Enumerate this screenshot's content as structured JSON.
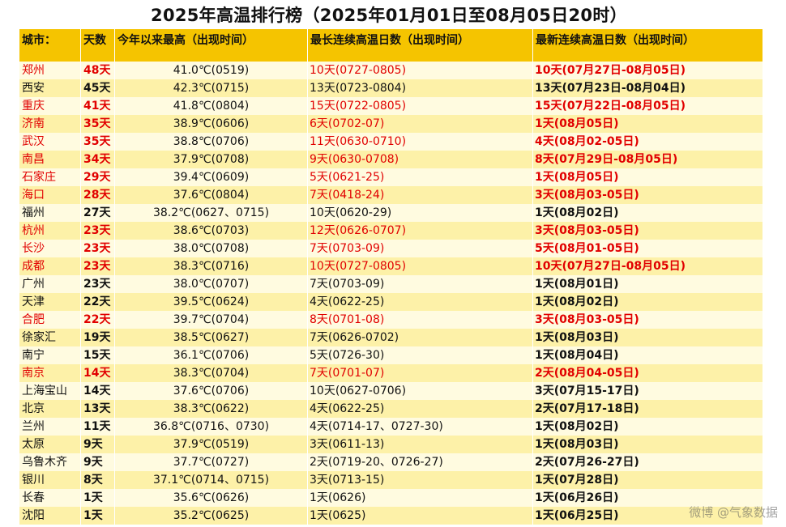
{
  "title": "2025年高温排行榜（2025年01月01日至08月05日20时）",
  "colors": {
    "header_bg": "#f5c400",
    "row_light": "#fffbe0",
    "row_dark": "#fdf1a8",
    "highlight": "#e10000"
  },
  "headers": [
    "城市：",
    "天数",
    "今年以来最高（出现时间）",
    "最长连续高温日数（出现时间）",
    "最新连续高温日数（出现时间）"
  ],
  "rows": [
    {
      "city": "郑州",
      "days": "48天",
      "max": "41.0℃(0519)",
      "longest": "10天(0727-0805)",
      "latest": "10天(07月27日-08月05日)",
      "red": true
    },
    {
      "city": "西安",
      "days": "45天",
      "max": "42.3℃(0715)",
      "longest": "13天(0723-0804)",
      "latest": "13天(07月23日-08月04日)",
      "red": false
    },
    {
      "city": "重庆",
      "days": "41天",
      "max": "41.8℃(0804)",
      "longest": "15天(0722-0805)",
      "latest": "15天(07月22日-08月05日)",
      "red": true
    },
    {
      "city": "济南",
      "days": "35天",
      "max": "38.9℃(0606)",
      "longest": "6天(0702-07)",
      "latest": "1天(08月05日)",
      "red": true
    },
    {
      "city": "武汉",
      "days": "35天",
      "max": "38.8℃(0706)",
      "longest": "11天(0630-0710)",
      "latest": "4天(08月02-05日)",
      "red": true
    },
    {
      "city": "南昌",
      "days": "34天",
      "max": "37.9℃(0708)",
      "longest": "9天(0630-0708)",
      "latest": "8天(07月29日-08月05日)",
      "red": true
    },
    {
      "city": "石家庄",
      "days": "29天",
      "max": "39.4℃(0609)",
      "longest": "5天(0621-25)",
      "latest": "1天(08月05日)",
      "red": true
    },
    {
      "city": "海口",
      "days": "28天",
      "max": "37.6℃(0804)",
      "longest": "7天(0418-24)",
      "latest": "3天(08月03-05日)",
      "red": true
    },
    {
      "city": "福州",
      "days": "27天",
      "max": "38.2℃(0627、0715)",
      "longest": "10天(0620-29)",
      "latest": "1天(08月02日)",
      "red": false
    },
    {
      "city": "杭州",
      "days": "23天",
      "max": "38.6℃(0703)",
      "longest": "12天(0626-0707)",
      "latest": "3天(08月03-05日)",
      "red": true
    },
    {
      "city": "长沙",
      "days": "23天",
      "max": "38.0℃(0708)",
      "longest": "7天(0703-09)",
      "latest": "5天(08月01-05日)",
      "red": true
    },
    {
      "city": "成都",
      "days": "23天",
      "max": "38.3℃(0716)",
      "longest": "10天(0727-0805)",
      "latest": "10天(07月27日-08月05日)",
      "red": true
    },
    {
      "city": "广州",
      "days": "23天",
      "max": "38.0℃(0707)",
      "longest": "7天(0703-09)",
      "latest": "1天(08月01日)",
      "red": false
    },
    {
      "city": "天津",
      "days": "22天",
      "max": "39.5℃(0624)",
      "longest": "4天(0622-25)",
      "latest": "1天(08月02日)",
      "red": false
    },
    {
      "city": "合肥",
      "days": "22天",
      "max": "39.7℃(0704)",
      "longest": "8天(0701-08)",
      "latest": "3天(08月03-05日)",
      "red": true
    },
    {
      "city": "徐家汇",
      "days": "19天",
      "max": "38.5℃(0627)",
      "longest": "7天(0626-0702)",
      "latest": "1天(08月03日)",
      "red": false
    },
    {
      "city": "南宁",
      "days": "15天",
      "max": "36.1℃(0706)",
      "longest": "5天(0726-30)",
      "latest": "1天(08月04日)",
      "red": false
    },
    {
      "city": "南京",
      "days": "14天",
      "max": "38.3℃(0704)",
      "longest": "7天(0701-07)",
      "latest": "2天(08月04-05日)",
      "red": true
    },
    {
      "city": "上海宝山",
      "days": "14天",
      "max": "37.6℃(0706)",
      "longest": "10天(0627-0706)",
      "latest": "3天(07月15-17日)",
      "red": false
    },
    {
      "city": "北京",
      "days": "13天",
      "max": "38.3℃(0622)",
      "longest": "4天(0622-25)",
      "latest": "2天(07月17-18日)",
      "red": false
    },
    {
      "city": "兰州",
      "days": "11天",
      "max": "36.8℃(0716、0730)",
      "longest": "4天(0714-17、0727-30)",
      "latest": "1天(08月02日)",
      "red": false
    },
    {
      "city": "太原",
      "days": "9天",
      "max": "37.9℃(0519)",
      "longest": "3天(0611-13)",
      "latest": "1天(08月03日)",
      "red": false
    },
    {
      "city": "乌鲁木齐",
      "days": "9天",
      "max": "37.7℃(0727)",
      "longest": "2天(0719-20、0726-27)",
      "latest": "2天(07月26-27日)",
      "red": false
    },
    {
      "city": "银川",
      "days": "8天",
      "max": "37.1℃(0714、0715)",
      "longest": "3天(0713-15)",
      "latest": "1天(07月28日)",
      "red": false
    },
    {
      "city": "长春",
      "days": "1天",
      "max": "35.6℃(0626)",
      "longest": "1天(0626)",
      "latest": "1天(06月26日)",
      "red": false
    },
    {
      "city": "沈阳",
      "days": "1天",
      "max": "35.2℃(0625)",
      "longest": "1天(0625)",
      "latest": "1天(06月25日)",
      "red": false
    }
  ],
  "watermark": "微博 @气象数据"
}
